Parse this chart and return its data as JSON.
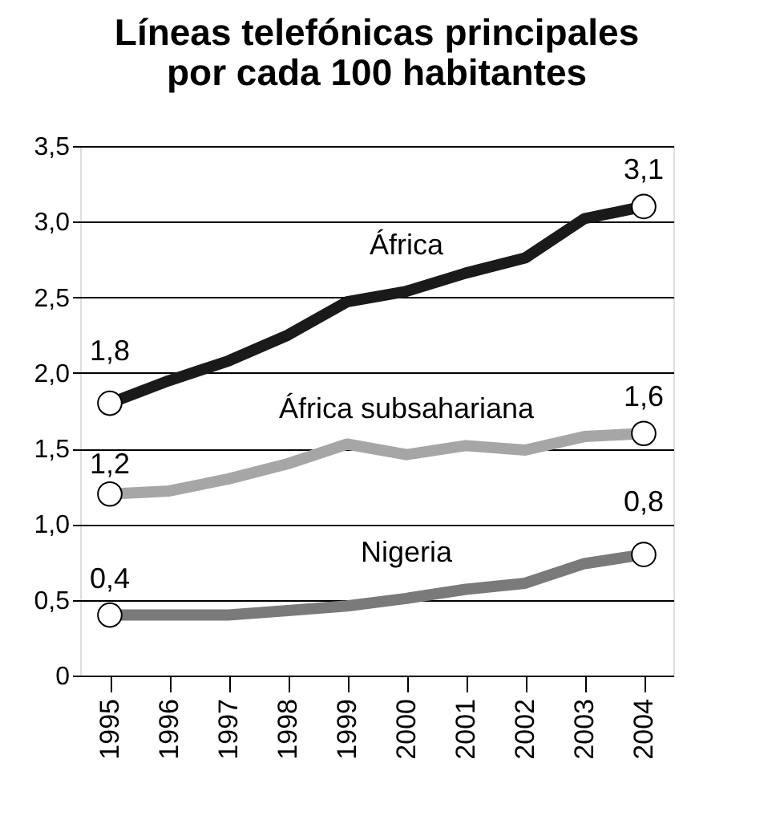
{
  "chart_data": {
    "type": "line",
    "title": "Líneas telefónicas principales\npor cada 100 habitantes",
    "categories": [
      "1995",
      "1996",
      "1997",
      "1998",
      "1999",
      "2000",
      "2001",
      "2002",
      "2003",
      "2004"
    ],
    "series": [
      {
        "name": "África",
        "color": "#1a1a1a",
        "values": [
          1.8,
          1.95,
          2.08,
          2.25,
          2.47,
          2.54,
          2.66,
          2.76,
          3.02,
          3.1
        ],
        "value_labels": [
          "1,8",
          null,
          null,
          null,
          null,
          null,
          null,
          null,
          null,
          "3,1"
        ]
      },
      {
        "name": "África subsahariana",
        "color": "#a6a6a6",
        "values": [
          1.2,
          1.22,
          1.3,
          1.4,
          1.53,
          1.46,
          1.52,
          1.49,
          1.58,
          1.6
        ],
        "value_labels": [
          "1,2",
          null,
          null,
          null,
          null,
          null,
          null,
          null,
          null,
          "1,6"
        ]
      },
      {
        "name": "Nigeria",
        "color": "#7a7a7a",
        "values": [
          0.4,
          0.4,
          0.4,
          0.43,
          0.46,
          0.51,
          0.57,
          0.61,
          0.74,
          0.8
        ],
        "value_labels": [
          "0,4",
          null,
          null,
          null,
          null,
          null,
          null,
          null,
          null,
          "0,8"
        ]
      }
    ],
    "ylim": [
      0,
      3.5
    ],
    "yticks": [
      0,
      {
        "value": 0.5,
        "label": "0,5"
      },
      {
        "value": 1.0,
        "label": "1,0"
      },
      {
        "value": 1.5,
        "label": "1,5"
      },
      {
        "value": 2.0,
        "label": "2,0"
      },
      {
        "value": 2.5,
        "label": "2,5"
      },
      {
        "value": 3.0,
        "label": "3,0"
      },
      {
        "value": 3.5,
        "label": "3,5"
      }
    ],
    "grid": "y"
  }
}
